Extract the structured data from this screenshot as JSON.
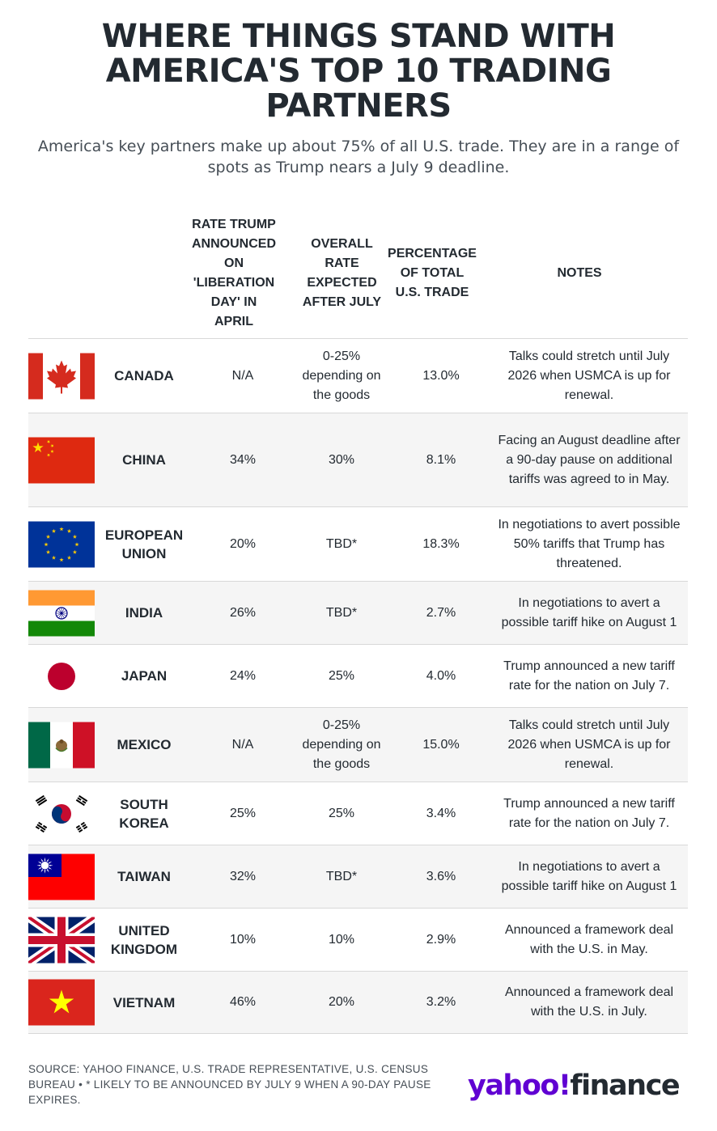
{
  "title": "WHERE THINGS STAND WITH AMERICA'S TOP 10 TRADING PARTNERS",
  "subtitle": "America's key partners make up about 75% of all U.S. trade. They are in a range of spots as Trump nears a July 9 deadline.",
  "headers": {
    "liberation": "RATE TRUMP ANNOUNCED ON 'LIBERATION DAY' IN APRIL",
    "expected": "OVERALL RATE EXPECTED AFTER JULY",
    "percentage": "PERCENTAGE OF TOTAL U.S. TRADE",
    "notes": "NOTES"
  },
  "rows": [
    {
      "country": "CANADA",
      "flag": "canada-flag-icon",
      "liberation": "N/A",
      "expected": "0-25% depending on the goods",
      "percentage": "13.0%",
      "notes": "Talks could stretch until July 2026 when USMCA is up for renewal."
    },
    {
      "country": "CHINA",
      "flag": "china-flag-icon",
      "liberation": "34%",
      "expected": "30%",
      "percentage": "8.1%",
      "notes": "Facing an August deadline after a 90-day pause on additional tariffs was agreed to in May."
    },
    {
      "country": "EUROPEAN UNION",
      "flag": "eu-flag-icon",
      "liberation": "20%",
      "expected": "TBD*",
      "percentage": "18.3%",
      "notes": "In negotiations to avert possible 50% tariffs that Trump has threatened."
    },
    {
      "country": "INDIA",
      "flag": "india-flag-icon",
      "liberation": "26%",
      "expected": "TBD*",
      "percentage": "2.7%",
      "notes": "In negotiations to avert a possible tariff hike on August 1"
    },
    {
      "country": "JAPAN",
      "flag": "japan-flag-icon",
      "liberation": "24%",
      "expected": "25%",
      "percentage": "4.0%",
      "notes": "Trump announced a new tariff rate for the nation on July 7."
    },
    {
      "country": "MEXICO",
      "flag": "mexico-flag-icon",
      "liberation": "N/A",
      "expected": "0-25% depending on the goods",
      "percentage": "15.0%",
      "notes": "Talks could stretch until July 2026 when USMCA is up for renewal."
    },
    {
      "country": "SOUTH KOREA",
      "flag": "south-korea-flag-icon",
      "liberation": "25%",
      "expected": "25%",
      "percentage": "3.4%",
      "notes": "Trump announced a new tariff rate for the nation on July 7."
    },
    {
      "country": "TAIWAN",
      "flag": "taiwan-flag-icon",
      "liberation": "32%",
      "expected": "TBD*",
      "percentage": "3.6%",
      "notes": "In negotiations to avert a possible tariff hike on August 1"
    },
    {
      "country": "UNITED KINGDOM",
      "flag": "uk-flag-icon",
      "liberation": "10%",
      "expected": "10%",
      "percentage": "2.9%",
      "notes": "Announced a framework deal with the U.S. in May."
    },
    {
      "country": "VIETNAM",
      "flag": "vietnam-flag-icon",
      "liberation": "46%",
      "expected": "20%",
      "percentage": "3.2%",
      "notes": "Announced a framework deal with the U.S. in July."
    }
  ],
  "footer": {
    "source": "SOURCE: YAHOO FINANCE, U.S. TRADE REPRESENTATIVE, U.S. CENSUS BUREAU • * LIKELY TO BE ANNOUNCED BY JULY 9 WHEN A 90-DAY PAUSE EXPIRES.",
    "logo_yahoo": "yahoo!",
    "logo_finance": "finance"
  },
  "colors": {
    "brand_purple": "#6001d2",
    "text": "#232a31",
    "row_alt": "#f5f5f5",
    "divider": "#d8d8d8"
  }
}
